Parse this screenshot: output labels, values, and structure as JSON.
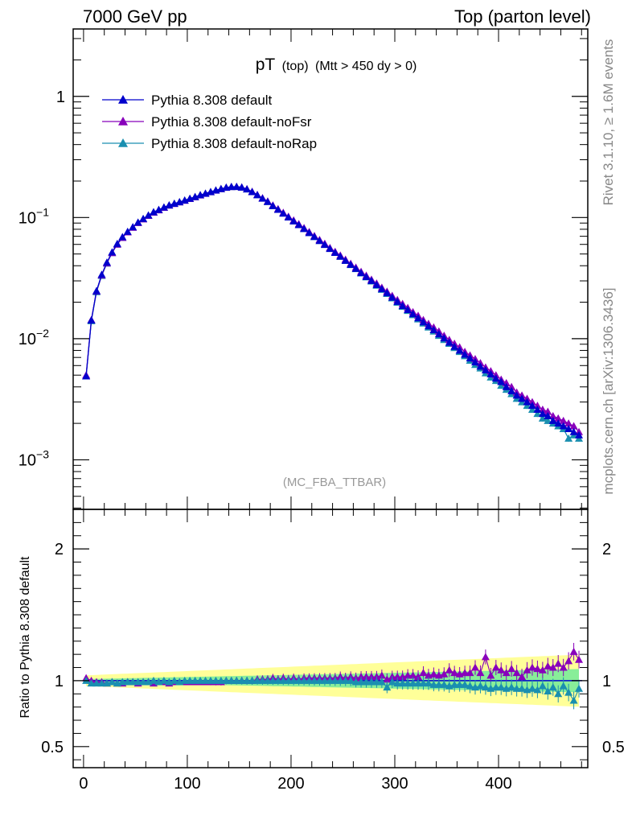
{
  "header": {
    "left": "7000 GeV pp",
    "right": "Top (parton level)"
  },
  "plot_title": {
    "main": "pT",
    "sub1": "(top)",
    "sub2": "(Mtt > 450 dy > 0)"
  },
  "watermark": "(MC_FBA_TTBAR)",
  "side_text": {
    "rivet": "Rivet 3.1.10, ≥ 1.6M events",
    "mcplots": "mcplots.cern.ch [arXiv:1306.3436]"
  },
  "colors": {
    "default": "#0000cc",
    "noFsr": "#8800bb",
    "noRap": "#1a8fb0",
    "band_yellow": "#ffff99",
    "band_green": "#88ee99"
  },
  "chart_data": [
    {
      "type": "line",
      "yscale": "log",
      "xlim": [
        -10,
        486
      ],
      "ylim": [
        0.00039,
        3.6
      ],
      "yticks": [
        {
          "value": 1,
          "label": "1"
        },
        {
          "value": 0.1,
          "label": "10",
          "exp": "−1"
        },
        {
          "value": 0.01,
          "label": "10",
          "exp": "−2"
        },
        {
          "value": 0.001,
          "label": "10",
          "exp": "−3"
        }
      ],
      "legend_position": "top-left",
      "x": [
        2.5,
        7.5,
        12.5,
        17.5,
        22.5,
        27.5,
        32.5,
        37.5,
        42.5,
        47.5,
        52.5,
        57.5,
        62.5,
        67.5,
        72.5,
        77.5,
        82.5,
        87.5,
        92.5,
        97.5,
        102.5,
        107.5,
        112.5,
        117.5,
        122.5,
        127.5,
        132.5,
        137.5,
        142.5,
        147.5,
        152.5,
        157.5,
        162.5,
        167.5,
        172.5,
        177.5,
        182.5,
        187.5,
        192.5,
        197.5,
        202.5,
        207.5,
        212.5,
        217.5,
        222.5,
        227.5,
        232.5,
        237.5,
        242.5,
        247.5,
        252.5,
        257.5,
        262.5,
        267.5,
        272.5,
        277.5,
        282.5,
        287.5,
        292.5,
        297.5,
        302.5,
        307.5,
        312.5,
        317.5,
        322.5,
        327.5,
        332.5,
        337.5,
        342.5,
        347.5,
        352.5,
        357.5,
        362.5,
        367.5,
        372.5,
        377.5,
        382.5,
        387.5,
        392.5,
        397.5,
        402.5,
        407.5,
        412.5,
        417.5,
        422.5,
        427.5,
        432.5,
        437.5,
        442.5,
        447.5,
        452.5,
        457.5,
        462.5,
        467.5,
        472.5,
        477.5
      ],
      "series": [
        {
          "name": "Pythia 8.308 default",
          "color_key": "default",
          "values": [
            0.0049,
            0.0142,
            0.0248,
            0.0338,
            0.0426,
            0.0518,
            0.0608,
            0.0691,
            0.0765,
            0.0834,
            0.0912,
            0.0977,
            0.1044,
            0.1109,
            0.1159,
            0.1214,
            0.1265,
            0.1304,
            0.1343,
            0.1386,
            0.1433,
            0.1482,
            0.1532,
            0.1579,
            0.1628,
            0.1676,
            0.1724,
            0.1768,
            0.1792,
            0.1795,
            0.1773,
            0.1712,
            0.1628,
            0.1533,
            0.1437,
            0.1348,
            0.1247,
            0.1162,
            0.1081,
            0.1004,
            0.0933,
            0.0869,
            0.0807,
            0.0747,
            0.0693,
            0.0643,
            0.0596,
            0.0552,
            0.0513,
            0.0477,
            0.0441,
            0.0408,
            0.0378,
            0.0349,
            0.0324,
            0.0301,
            0.0278,
            0.0257,
            0.0238,
            0.0219,
            0.0202,
            0.0187,
            0.0173,
            0.016,
            0.0148,
            0.0137,
            0.0127,
            0.0118,
            0.0109,
            0.0101,
            0.0093,
            0.0086,
            0.008,
            0.0074,
            0.0069,
            0.0064,
            0.0059,
            0.0055,
            0.0051,
            0.0047,
            0.0044,
            0.004,
            0.0037,
            0.0034,
            0.0032,
            0.003,
            0.0028,
            0.0026,
            0.0024,
            0.0023,
            0.0021,
            0.002,
            0.0019,
            0.0018,
            0.0017,
            0.0016
          ]
        },
        {
          "name": "Pythia 8.308 default-noFsr",
          "color_key": "noFsr",
          "values": [
            0.005,
            0.0143,
            0.0246,
            0.0334,
            0.042,
            0.0511,
            0.06,
            0.0682,
            0.0757,
            0.0827,
            0.0904,
            0.0969,
            0.1036,
            0.1101,
            0.1151,
            0.1207,
            0.1258,
            0.1298,
            0.1338,
            0.1381,
            0.1428,
            0.1477,
            0.1527,
            0.1575,
            0.1624,
            0.1673,
            0.1722,
            0.1767,
            0.1793,
            0.1797,
            0.1777,
            0.1718,
            0.1636,
            0.1543,
            0.1448,
            0.1361,
            0.1262,
            0.1177,
            0.1097,
            0.1019,
            0.0949,
            0.0884,
            0.0821,
            0.0762,
            0.0706,
            0.0655,
            0.0609,
            0.0562,
            0.0523,
            0.0487,
            0.045,
            0.0416,
            0.0387,
            0.0357,
            0.0332,
            0.0308,
            0.0286,
            0.0264,
            0.0245,
            0.0226,
            0.0209,
            0.0194,
            0.018,
            0.0166,
            0.0155,
            0.0143,
            0.0133,
            0.0124,
            0.0115,
            0.0106,
            0.0098,
            0.0091,
            0.0085,
            0.0078,
            0.0073,
            0.0068,
            0.0063,
            0.0058,
            0.0054,
            0.005,
            0.0046,
            0.0043,
            0.004,
            0.0036,
            0.0034,
            0.0032,
            0.003,
            0.0028,
            0.0026,
            0.0025,
            0.0023,
            0.0022,
            0.0021,
            0.002,
            0.0019,
            0.0017
          ]
        },
        {
          "name": "Pythia 8.308 default-noRap",
          "color_key": "noRap",
          "values": [
            0.0049,
            0.014,
            0.0243,
            0.0331,
            0.0418,
            0.0511,
            0.06,
            0.0683,
            0.0758,
            0.0828,
            0.0906,
            0.0972,
            0.1039,
            0.1105,
            0.1156,
            0.1211,
            0.1262,
            0.1302,
            0.1342,
            0.1385,
            0.1432,
            0.1481,
            0.1532,
            0.1579,
            0.1628,
            0.1677,
            0.1725,
            0.1769,
            0.1793,
            0.1796,
            0.1774,
            0.1713,
            0.163,
            0.1535,
            0.1439,
            0.135,
            0.1249,
            0.1165,
            0.1084,
            0.1006,
            0.0935,
            0.0871,
            0.0809,
            0.0748,
            0.0694,
            0.0644,
            0.0597,
            0.0553,
            0.0514,
            0.0477,
            0.0441,
            0.0407,
            0.0377,
            0.0347,
            0.0322,
            0.0298,
            0.0275,
            0.0254,
            0.0235,
            0.0216,
            0.0199,
            0.0184,
            0.017,
            0.0157,
            0.0145,
            0.0134,
            0.0124,
            0.0115,
            0.0106,
            0.0098,
            0.0091,
            0.0084,
            0.0078,
            0.0072,
            0.0066,
            0.0061,
            0.0057,
            0.0052,
            0.0048,
            0.0045,
            0.0041,
            0.0038,
            0.0035,
            0.0032,
            0.003,
            0.0028,
            0.0026,
            0.0024,
            0.0022,
            0.0021,
            0.002,
            0.0019,
            0.0018,
            0.0015,
            0.0016,
            0.0015
          ]
        }
      ]
    },
    {
      "type": "line",
      "ylabel": "Ratio to Pythia 8.308 default",
      "xlim": [
        -10,
        486
      ],
      "ylim": [
        0.34,
        2.3
      ],
      "yticks": [
        0.5,
        1,
        2
      ],
      "xticks": [
        0,
        100,
        200,
        300,
        400
      ],
      "x": [
        2.5,
        7.5,
        12.5,
        17.5,
        22.5,
        27.5,
        32.5,
        37.5,
        42.5,
        47.5,
        52.5,
        57.5,
        62.5,
        67.5,
        72.5,
        77.5,
        82.5,
        87.5,
        92.5,
        97.5,
        102.5,
        107.5,
        112.5,
        117.5,
        122.5,
        127.5,
        132.5,
        137.5,
        142.5,
        147.5,
        152.5,
        157.5,
        162.5,
        167.5,
        172.5,
        177.5,
        182.5,
        187.5,
        192.5,
        197.5,
        202.5,
        207.5,
        212.5,
        217.5,
        222.5,
        227.5,
        232.5,
        237.5,
        242.5,
        247.5,
        252.5,
        257.5,
        262.5,
        267.5,
        272.5,
        277.5,
        282.5,
        287.5,
        292.5,
        297.5,
        302.5,
        307.5,
        312.5,
        317.5,
        322.5,
        327.5,
        332.5,
        337.5,
        342.5,
        347.5,
        352.5,
        357.5,
        362.5,
        367.5,
        372.5,
        377.5,
        382.5,
        387.5,
        392.5,
        397.5,
        402.5,
        407.5,
        412.5,
        417.5,
        422.5,
        427.5,
        432.5,
        437.5,
        442.5,
        447.5,
        452.5,
        457.5,
        462.5,
        467.5,
        472.5,
        477.5
      ],
      "series": [
        {
          "name": "Pythia 8.308 default-noFsr",
          "color_key": "noFsr",
          "values": [
            1.02,
            1.0,
            0.99,
            0.99,
            0.98,
            0.99,
            0.98,
            0.98,
            0.99,
            0.99,
            0.98,
            0.99,
            0.99,
            0.98,
            0.99,
            0.99,
            0.98,
            0.99,
            0.99,
            0.99,
            0.99,
            0.99,
            0.99,
            0.99,
            0.99,
            0.99,
            0.99,
            1.0,
            1.0,
            1.0,
            1.0,
            1.0,
            1.0,
            1.01,
            1.01,
            1.01,
            1.02,
            1.01,
            1.02,
            1.01,
            1.02,
            1.01,
            1.02,
            1.02,
            1.02,
            1.02,
            1.02,
            1.02,
            1.02,
            1.03,
            1.02,
            1.03,
            1.02,
            1.03,
            1.03,
            1.03,
            1.03,
            1.04,
            1.01,
            1.03,
            1.03,
            1.03,
            1.04,
            1.04,
            1.03,
            1.06,
            1.04,
            1.05,
            1.04,
            1.05,
            1.08,
            1.06,
            1.05,
            1.06,
            1.06,
            1.1,
            1.06,
            1.18,
            1.04,
            1.1,
            1.08,
            1.06,
            1.09,
            1.06,
            1.03,
            1.08,
            1.1,
            1.09,
            1.08,
            1.11,
            1.1,
            1.13,
            1.1,
            1.15,
            1.22,
            1.16
          ]
        },
        {
          "name": "Pythia 8.308 default-noRap",
          "color_key": "noRap",
          "values": [
            1.0,
            0.98,
            0.98,
            0.98,
            0.98,
            0.99,
            0.98,
            0.99,
            0.99,
            0.99,
            0.99,
            0.99,
            0.99,
            1.0,
            0.99,
            1.0,
            0.99,
            1.0,
            0.99,
            1.0,
            1.0,
            1.0,
            1.0,
            1.0,
            1.0,
            1.0,
            1.0,
            1.0,
            1.0,
            1.0,
            1.0,
            1.0,
            1.0,
            1.0,
            1.0,
            1.0,
            1.0,
            1.0,
            1.0,
            1.0,
            1.0,
            1.0,
            1.0,
            1.0,
            1.0,
            1.0,
            1.0,
            1.0,
            1.0,
            1.0,
            1.0,
            1.0,
            0.99,
            0.99,
            0.99,
            0.99,
            0.99,
            0.99,
            0.95,
            0.99,
            0.98,
            0.98,
            0.98,
            0.98,
            0.98,
            0.98,
            0.98,
            0.97,
            0.97,
            0.97,
            0.96,
            0.97,
            0.97,
            0.97,
            0.96,
            0.95,
            0.96,
            0.95,
            0.94,
            0.95,
            0.95,
            0.94,
            0.95,
            0.94,
            0.94,
            0.93,
            0.94,
            0.93,
            0.96,
            0.92,
            0.95,
            0.9,
            0.96,
            0.91,
            0.85,
            0.94
          ]
        }
      ]
    }
  ]
}
